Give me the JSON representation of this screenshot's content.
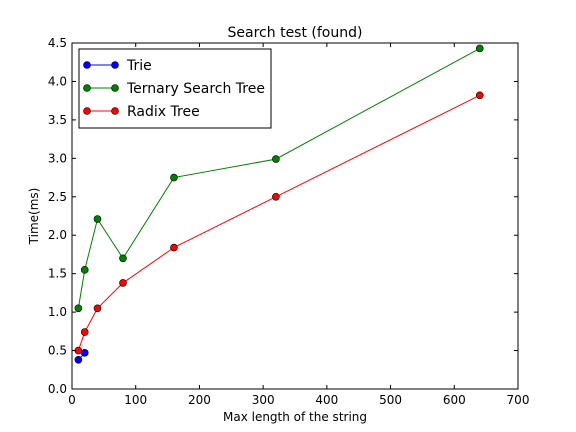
{
  "chart_data": {
    "type": "line",
    "title": "Search test (found)",
    "xlabel": "Max length of the string",
    "ylabel": "Time(ms)",
    "xlim": [
      0,
      700
    ],
    "ylim": [
      0,
      4.5
    ],
    "xticks": [
      0,
      100,
      200,
      300,
      400,
      500,
      600,
      700
    ],
    "yticks": [
      0.0,
      0.5,
      1.0,
      1.5,
      2.0,
      2.5,
      3.0,
      3.5,
      4.0,
      4.5
    ],
    "xtick_labels": [
      "0",
      "100",
      "200",
      "300",
      "400",
      "500",
      "600",
      "700"
    ],
    "ytick_labels": [
      "0.0",
      "0.5",
      "1.0",
      "1.5",
      "2.0",
      "2.5",
      "3.0",
      "3.5",
      "4.0",
      "4.5"
    ],
    "grid": false,
    "legend_position": "top-left",
    "series": [
      {
        "name": "Trie",
        "color": "#0000ff",
        "x": [
          10,
          20
        ],
        "y": [
          0.38,
          0.47
        ]
      },
      {
        "name": "Ternary Search Tree",
        "color": "#008000",
        "x": [
          10,
          20,
          40,
          80,
          160,
          320,
          640
        ],
        "y": [
          1.05,
          1.55,
          2.21,
          1.7,
          2.75,
          2.99,
          4.43
        ]
      },
      {
        "name": "Radix Tree",
        "color": "#ff0000",
        "x": [
          10,
          20,
          40,
          80,
          160,
          320,
          640
        ],
        "y": [
          0.5,
          0.74,
          1.05,
          1.38,
          1.84,
          2.5,
          3.82
        ]
      }
    ]
  }
}
